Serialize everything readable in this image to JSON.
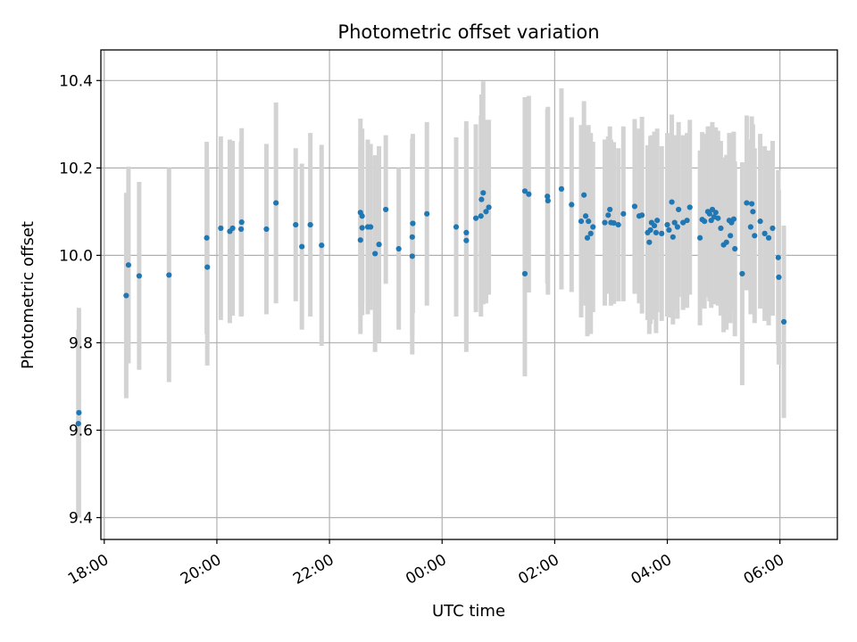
{
  "chart_data": {
    "type": "scatter",
    "title": "Photometric offset variation",
    "xlabel": "UTC time",
    "ylabel": "Photometric offset",
    "grid": true,
    "x_is_time": true,
    "xlim": [
      -6.06,
      7.02
    ],
    "ylim": [
      9.35,
      10.47
    ],
    "x_ticks": [
      {
        "value": -6,
        "label": "18:00"
      },
      {
        "value": -4,
        "label": "20:00"
      },
      {
        "value": -2,
        "label": "22:00"
      },
      {
        "value": 0,
        "label": "00:00"
      },
      {
        "value": 2,
        "label": "02:00"
      },
      {
        "value": 4,
        "label": "04:00"
      },
      {
        "value": 6,
        "label": "06:00"
      }
    ],
    "y_ticks": [
      {
        "value": 9.4,
        "label": "9.4"
      },
      {
        "value": 9.6,
        "label": "9.6"
      },
      {
        "value": 9.8,
        "label": "9.8"
      },
      {
        "value": 10.0,
        "label": "10.0"
      },
      {
        "value": 10.2,
        "label": "10.2"
      },
      {
        "value": 10.4,
        "label": "10.4"
      }
    ],
    "colors": {
      "points": "#1f77b4",
      "errorbars": "#d3d3d3",
      "grid": "#b0b0b0"
    },
    "points": [
      [
        -6.45,
        9.64,
        0.24
      ],
      [
        -6.46,
        9.615,
        0.215
      ],
      [
        -5.61,
        9.908,
        0.235
      ],
      [
        -5.57,
        9.978,
        0.225
      ],
      [
        -5.38,
        9.953,
        0.215
      ],
      [
        -4.85,
        9.955,
        0.245
      ],
      [
        -4.18,
        10.04,
        0.22
      ],
      [
        -4.17,
        9.973,
        0.225
      ],
      [
        -3.93,
        10.062,
        0.21
      ],
      [
        -3.77,
        10.055,
        0.21
      ],
      [
        -3.72,
        10.062,
        0.2
      ],
      [
        -3.57,
        10.06,
        0.2
      ],
      [
        -3.56,
        10.076,
        0.215
      ],
      [
        -3.12,
        10.06,
        0.195
      ],
      [
        -2.95,
        10.12,
        0.23
      ],
      [
        -2.6,
        10.07,
        0.175
      ],
      [
        -2.49,
        10.02,
        0.19
      ],
      [
        -2.34,
        10.07,
        0.21
      ],
      [
        -2.14,
        10.023,
        0.23
      ],
      [
        -1.45,
        10.098,
        0.215
      ],
      [
        -1.45,
        10.035,
        0.215
      ],
      [
        -1.42,
        10.09,
        0.2
      ],
      [
        -1.42,
        10.063,
        0.2
      ],
      [
        -1.32,
        10.065,
        0.2
      ],
      [
        -1.27,
        10.065,
        0.19
      ],
      [
        -1.19,
        10.004,
        0.225
      ],
      [
        -1.12,
        10.025,
        0.225
      ],
      [
        -1.0,
        10.105,
        0.17
      ],
      [
        -0.77,
        10.015,
        0.185
      ],
      [
        -0.53,
        9.998,
        0.225
      ],
      [
        -0.53,
        10.042,
        0.225
      ],
      [
        -0.52,
        10.073,
        0.205
      ],
      [
        -0.27,
        10.095,
        0.21
      ],
      [
        0.25,
        10.065,
        0.205
      ],
      [
        0.43,
        10.052,
        0.255
      ],
      [
        0.43,
        10.034,
        0.255
      ],
      [
        0.6,
        10.085,
        0.215
      ],
      [
        0.69,
        10.09,
        0.23
      ],
      [
        0.7,
        10.128,
        0.24
      ],
      [
        0.73,
        10.143,
        0.255
      ],
      [
        0.78,
        10.1,
        0.21
      ],
      [
        0.83,
        10.11,
        0.2
      ],
      [
        1.47,
        10.147,
        0.215
      ],
      [
        1.47,
        9.958,
        0.235
      ],
      [
        1.54,
        10.14,
        0.225
      ],
      [
        1.87,
        10.135,
        0.2
      ],
      [
        1.88,
        10.125,
        0.215
      ],
      [
        2.12,
        10.152,
        0.23
      ],
      [
        2.3,
        10.116,
        0.2
      ],
      [
        2.47,
        10.078,
        0.22
      ],
      [
        2.52,
        10.138,
        0.215
      ],
      [
        2.55,
        10.09,
        0.205
      ],
      [
        2.58,
        10.04,
        0.225
      ],
      [
        2.6,
        10.078,
        0.22
      ],
      [
        2.64,
        10.05,
        0.23
      ],
      [
        2.68,
        10.065,
        0.195
      ],
      [
        2.89,
        10.075,
        0.19
      ],
      [
        2.95,
        10.092,
        0.18
      ],
      [
        2.98,
        10.105,
        0.19
      ],
      [
        3.0,
        10.075,
        0.19
      ],
      [
        3.05,
        10.074,
        0.185
      ],
      [
        3.13,
        10.07,
        0.175
      ],
      [
        3.22,
        10.095,
        0.2
      ],
      [
        3.42,
        10.112,
        0.2
      ],
      [
        3.5,
        10.09,
        0.2
      ],
      [
        3.55,
        10.092,
        0.225
      ],
      [
        3.65,
        10.052,
        0.2
      ],
      [
        3.68,
        10.03,
        0.21
      ],
      [
        3.7,
        10.058,
        0.215
      ],
      [
        3.72,
        10.075,
        0.2
      ],
      [
        3.77,
        10.068,
        0.215
      ],
      [
        3.8,
        10.052,
        0.23
      ],
      [
        3.82,
        10.08,
        0.21
      ],
      [
        3.9,
        10.05,
        0.2
      ],
      [
        4.0,
        10.07,
        0.21
      ],
      [
        4.03,
        10.058,
        0.2
      ],
      [
        4.08,
        10.122,
        0.2
      ],
      [
        4.1,
        10.042,
        0.2
      ],
      [
        4.13,
        10.075,
        0.2
      ],
      [
        4.18,
        10.065,
        0.21
      ],
      [
        4.2,
        10.105,
        0.2
      ],
      [
        4.28,
        10.075,
        0.2
      ],
      [
        4.35,
        10.08,
        0.2
      ],
      [
        4.4,
        10.11,
        0.2
      ],
      [
        4.58,
        10.04,
        0.2
      ],
      [
        4.62,
        10.082,
        0.2
      ],
      [
        4.66,
        10.078,
        0.2
      ],
      [
        4.72,
        10.1,
        0.195
      ],
      [
        4.75,
        10.095,
        0.2
      ],
      [
        4.78,
        10.08,
        0.2
      ],
      [
        4.8,
        10.105,
        0.2
      ],
      [
        4.83,
        10.088,
        0.2
      ],
      [
        4.86,
        10.098,
        0.195
      ],
      [
        4.9,
        10.085,
        0.2
      ],
      [
        4.95,
        10.062,
        0.2
      ],
      [
        5.0,
        10.024,
        0.2
      ],
      [
        5.05,
        10.03,
        0.2
      ],
      [
        5.1,
        10.08,
        0.2
      ],
      [
        5.12,
        10.045,
        0.2
      ],
      [
        5.14,
        10.075,
        0.2
      ],
      [
        5.18,
        10.083,
        0.2
      ],
      [
        5.2,
        10.015,
        0.2
      ],
      [
        5.33,
        9.958,
        0.255
      ],
      [
        5.41,
        10.12,
        0.2
      ],
      [
        5.48,
        10.065,
        0.2
      ],
      [
        5.5,
        10.118,
        0.2
      ],
      [
        5.52,
        10.1,
        0.2
      ],
      [
        5.55,
        10.045,
        0.2
      ],
      [
        5.65,
        10.078,
        0.2
      ],
      [
        5.73,
        10.05,
        0.2
      ],
      [
        5.8,
        10.04,
        0.2
      ],
      [
        5.87,
        10.062,
        0.2
      ],
      [
        5.97,
        9.995,
        0.2
      ],
      [
        5.98,
        9.95,
        0.2
      ],
      [
        6.07,
        9.848,
        0.22
      ]
    ]
  }
}
